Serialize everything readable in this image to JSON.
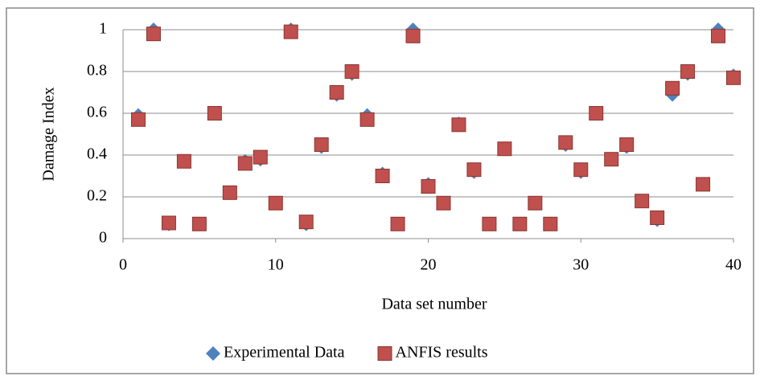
{
  "chart_data": {
    "type": "scatter",
    "xlabel": "Data set number",
    "ylabel": "Damage Index",
    "x": [
      1,
      2,
      3,
      4,
      5,
      6,
      7,
      8,
      9,
      10,
      11,
      12,
      13,
      14,
      15,
      16,
      17,
      18,
      19,
      20,
      21,
      22,
      23,
      24,
      25,
      26,
      27,
      28,
      29,
      30,
      31,
      32,
      33,
      34,
      35,
      36,
      37,
      38,
      39,
      40
    ],
    "series": [
      {
        "name": "Experimental Data",
        "color": "#4f81bd",
        "marker": "diamond",
        "values": [
          0.59,
          1.0,
          0.07,
          0.37,
          0.07,
          0.6,
          0.22,
          0.37,
          0.38,
          0.17,
          1.0,
          0.07,
          0.44,
          0.69,
          0.79,
          0.59,
          0.31,
          0.07,
          1.0,
          0.26,
          0.17,
          0.55,
          0.32,
          0.07,
          0.43,
          0.07,
          0.17,
          0.07,
          0.45,
          0.32,
          0.6,
          0.38,
          0.44,
          0.18,
          0.09,
          0.69,
          0.79,
          0.26,
          1.0,
          0.78
        ]
      },
      {
        "name": "ANFIS results",
        "color": "#c0504d",
        "marker": "square",
        "values": [
          0.57,
          0.98,
          0.075,
          0.37,
          0.07,
          0.6,
          0.22,
          0.36,
          0.39,
          0.17,
          0.99,
          0.08,
          0.45,
          0.7,
          0.8,
          0.57,
          0.3,
          0.07,
          0.97,
          0.25,
          0.17,
          0.545,
          0.33,
          0.07,
          0.43,
          0.07,
          0.17,
          0.07,
          0.46,
          0.33,
          0.6,
          0.38,
          0.45,
          0.18,
          0.1,
          0.72,
          0.8,
          0.26,
          0.97,
          0.77
        ]
      }
    ],
    "xlim": [
      0,
      40
    ],
    "xticks": [
      0,
      10,
      20,
      30,
      40
    ],
    "ylim": [
      0,
      1
    ],
    "yticks": [
      0,
      0.2,
      0.4,
      0.6,
      0.8,
      1
    ],
    "grid": true,
    "legend": "bottom"
  }
}
